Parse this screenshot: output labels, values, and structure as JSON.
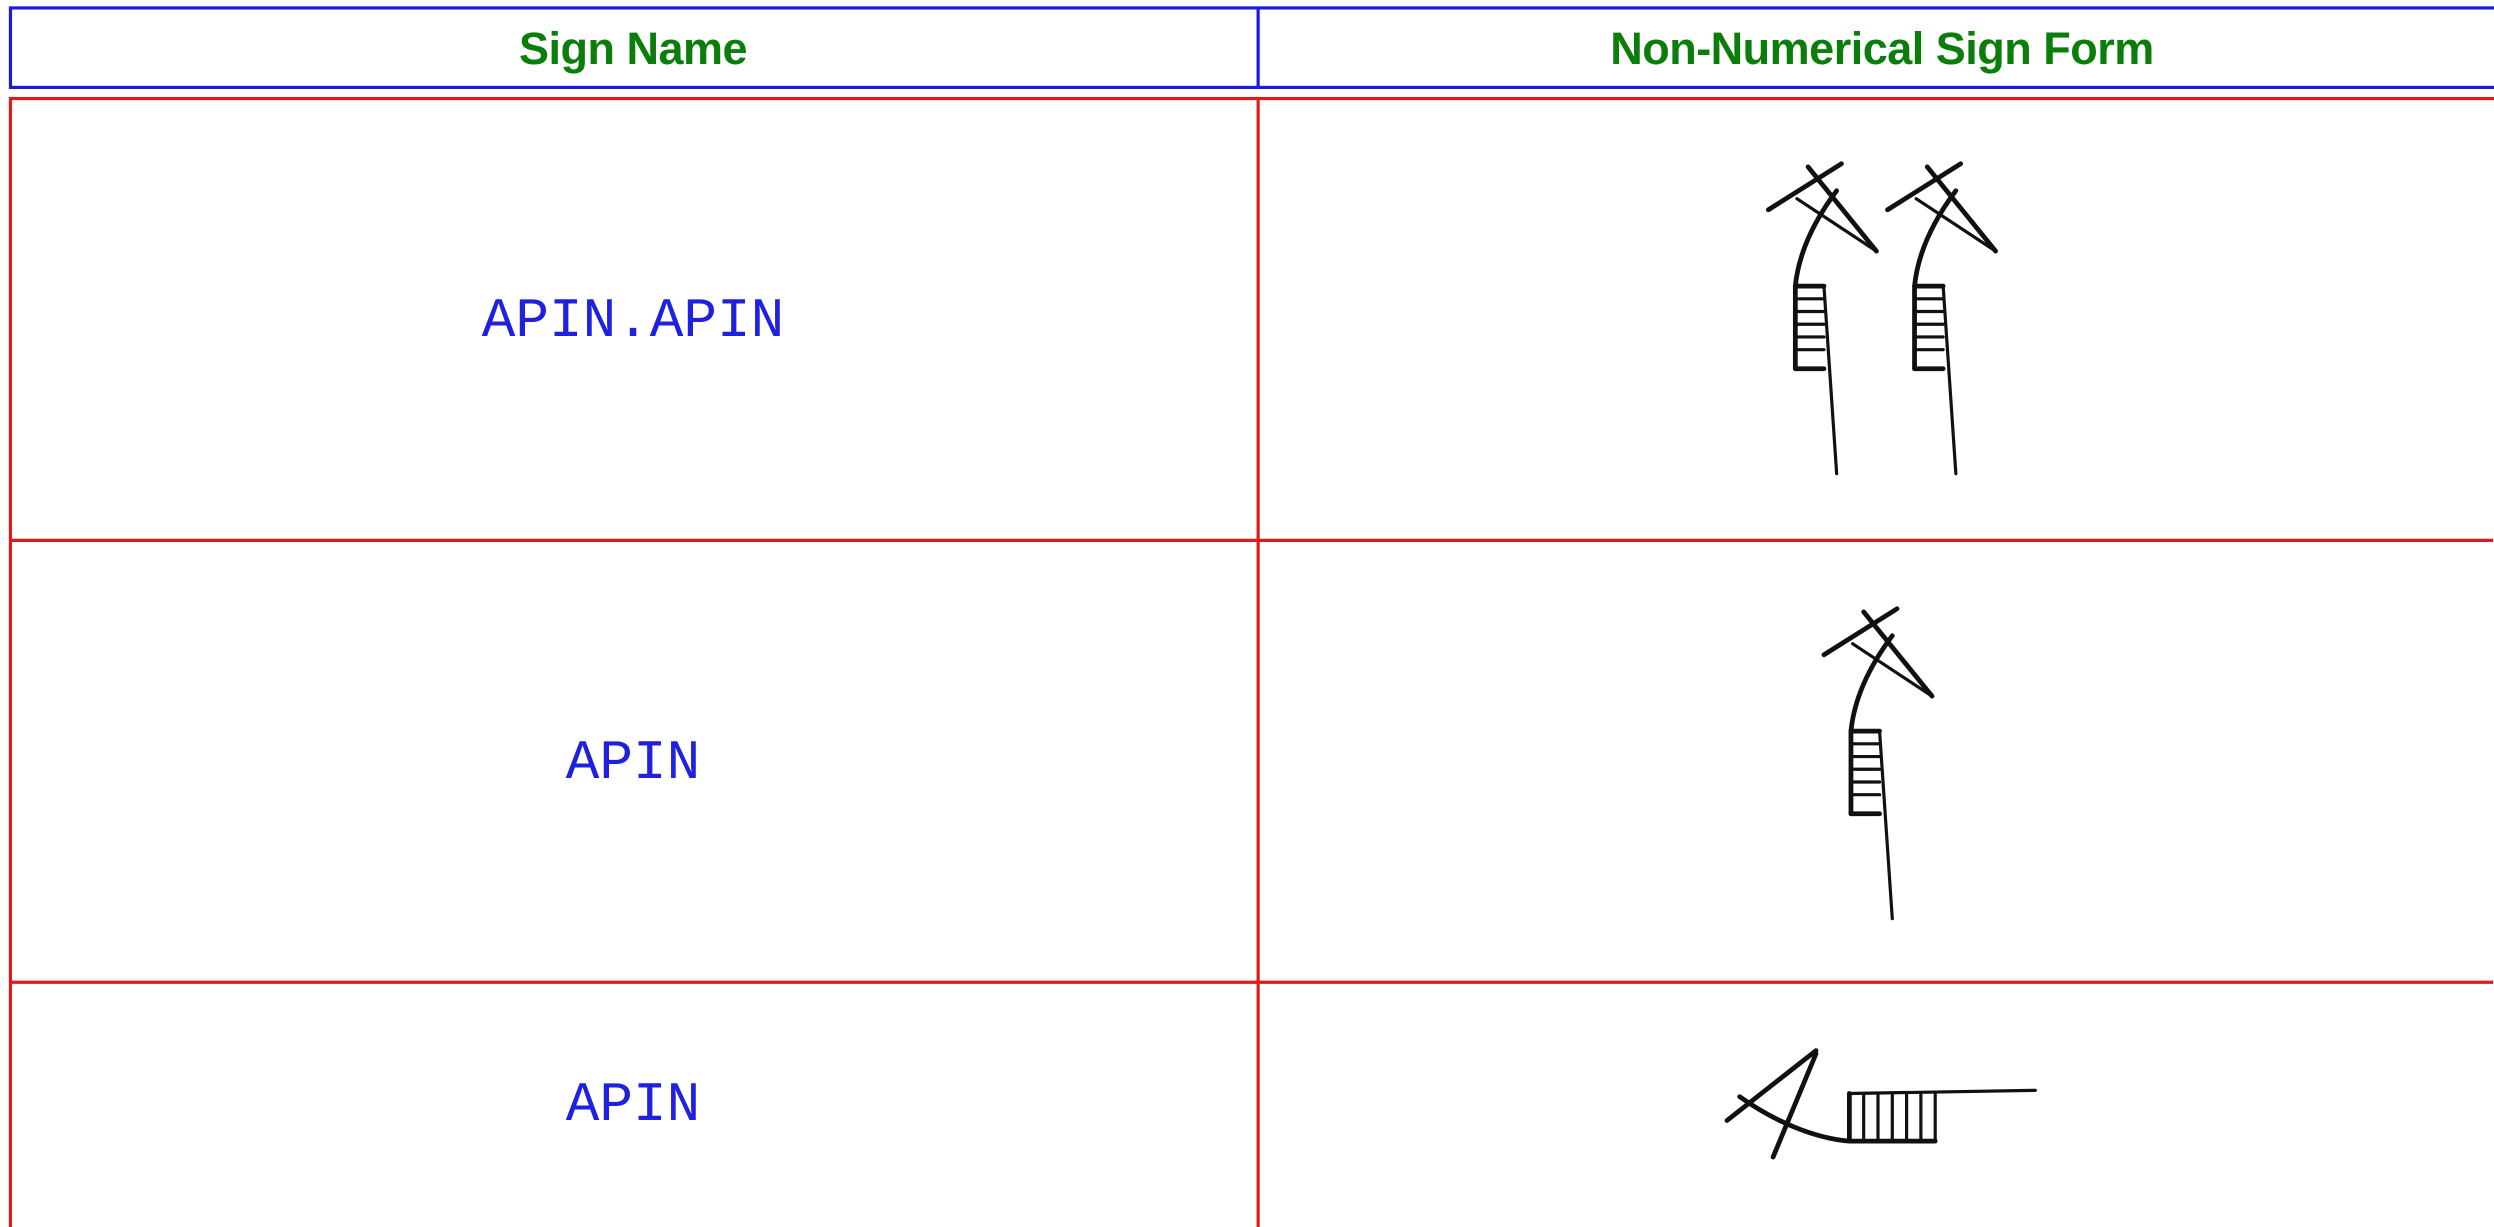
{
  "table": {
    "header": [
      "Sign Name",
      "Non-Numerical Sign Form"
    ],
    "rows": [
      [
        "APIN.APIN"
      ],
      [
        "APIN"
      ],
      [
        "APIN"
      ]
    ]
  }
}
